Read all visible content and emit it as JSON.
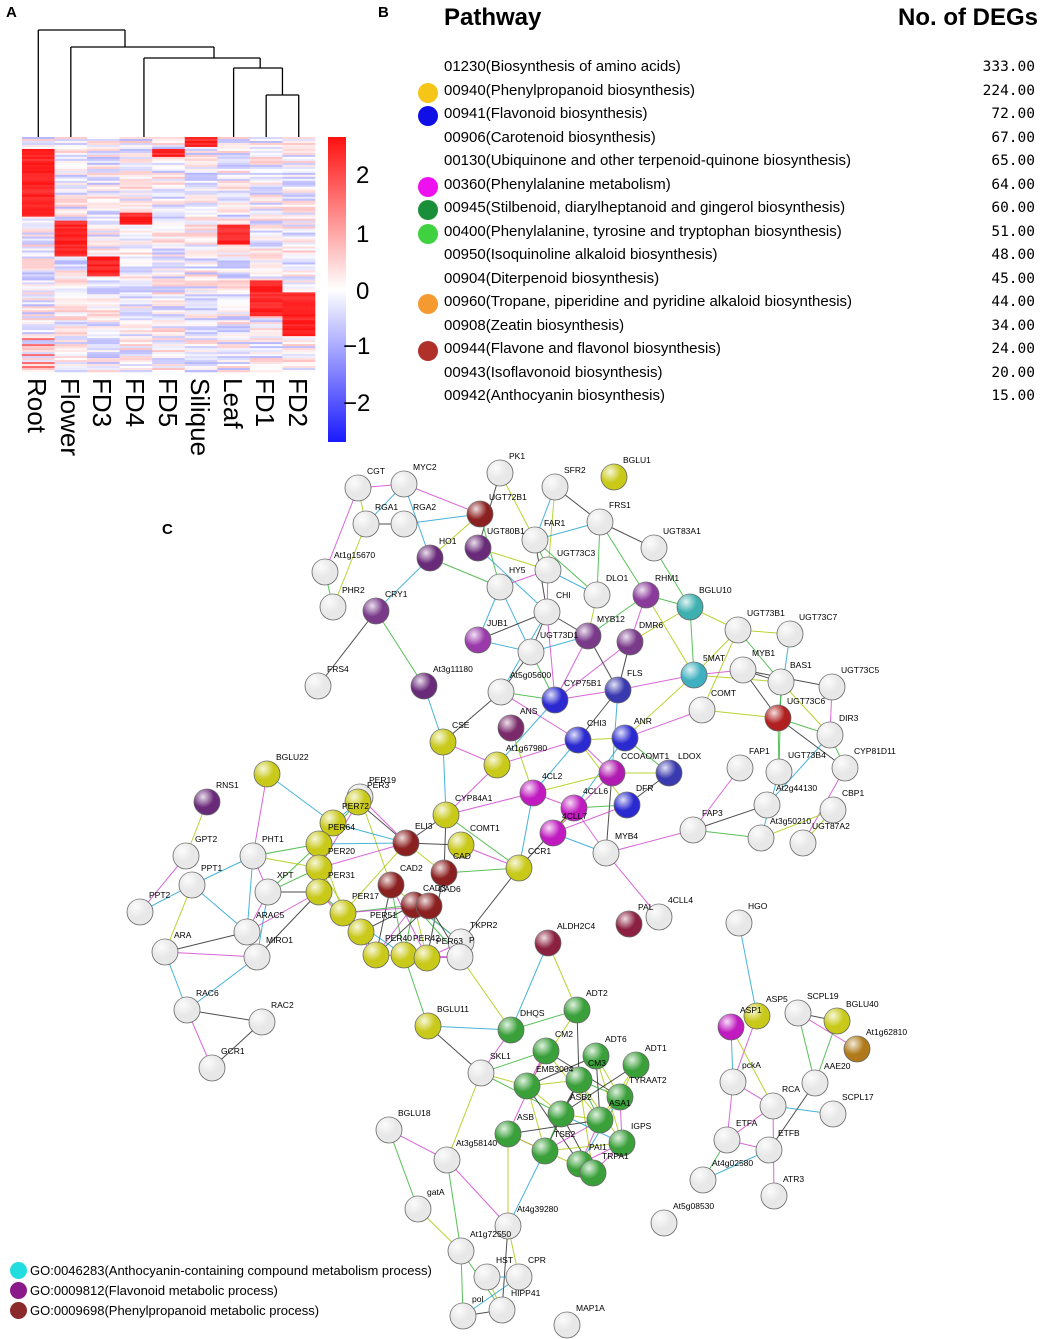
{
  "panels": {
    "a": "A",
    "b": "B",
    "c": "C"
  },
  "heatmap": {
    "samples": [
      "Root",
      "Flower",
      "FD3",
      "FD4",
      "FD5",
      "Silique",
      "Leaf",
      "FD1",
      "FD2"
    ],
    "colorbar_ticks": [
      "2",
      "1",
      "0",
      "−1",
      "−2"
    ],
    "color_low": "#1a1aff",
    "color_mid": "#ffffff",
    "color_high": "#ff1010"
  },
  "pathway_table": {
    "header_pathway": "Pathway",
    "header_count": "No. of DEGs",
    "rows": [
      {
        "label": "01230(Biosynthesis of amino acids)",
        "count": "333.00",
        "dot": ""
      },
      {
        "label": "00940(Phenylpropanoid biosynthesis)",
        "count": "224.00",
        "dot": "#f5c518"
      },
      {
        "label": "00941(Flavonoid biosynthesis)",
        "count": "72.00",
        "dot": "#1010e6"
      },
      {
        "label": "00906(Carotenoid biosynthesis)",
        "count": "67.00",
        "dot": ""
      },
      {
        "label": "00130(Ubiquinone and other terpenoid-quinone biosynthesis)",
        "count": "65.00",
        "dot": ""
      },
      {
        "label": "00360(Phenylalanine metabolism)",
        "count": "64.00",
        "dot": "#ee10ee"
      },
      {
        "label": "00945(Stilbenoid, diarylheptanoid and gingerol biosynthesis)",
        "count": "60.00",
        "dot": "#1a8f3a"
      },
      {
        "label": "00400(Phenylalanine, tyrosine and tryptophan biosynthesis)",
        "count": "51.00",
        "dot": "#3fd13f"
      },
      {
        "label": "00950(Isoquinoline alkaloid biosynthesis)",
        "count": "48.00",
        "dot": ""
      },
      {
        "label": "00904(Diterpenoid biosynthesis)",
        "count": "45.00",
        "dot": ""
      },
      {
        "label": "00960(Tropane, piperidine and pyridine alkaloid biosynthesis)",
        "count": "44.00",
        "dot": "#f59a30"
      },
      {
        "label": "00908(Zeatin biosynthesis)",
        "count": "34.00",
        "dot": ""
      },
      {
        "label": "00944(Flavone and flavonol biosynthesis)",
        "count": "24.00",
        "dot": "#b0302a"
      },
      {
        "label": "00943(Isoflavonoid biosynthesis)",
        "count": "20.00",
        "dot": ""
      },
      {
        "label": "00942(Anthocyanin biosynthesis)",
        "count": "15.00",
        "dot": ""
      }
    ]
  },
  "network": {
    "nodes": [
      {
        "id": "CGT",
        "fill": "#e8e8e8"
      },
      {
        "id": "MYC2",
        "fill": "#e8e8e8"
      },
      {
        "id": "PK1",
        "fill": "#e8e8e8"
      },
      {
        "id": "SFR2",
        "fill": "#e8e8e8"
      },
      {
        "id": "BGLU1",
        "fill": "#c9c91a"
      },
      {
        "id": "UGT72B1",
        "fill": "#8b2020"
      },
      {
        "id": "RGA1",
        "fill": "#e8e8e8"
      },
      {
        "id": "RGA2",
        "fill": "#e8e8e8"
      },
      {
        "id": "FAR1",
        "fill": "#e8e8e8"
      },
      {
        "id": "FRS1",
        "fill": "#e8e8e8"
      },
      {
        "id": "HO1",
        "fill": "#6a2a7a"
      },
      {
        "id": "UGT80B1",
        "fill": "#6a2a7a"
      },
      {
        "id": "UGT73C3",
        "fill": "#e8e8e8"
      },
      {
        "id": "At1g15670",
        "fill": "#e8e8e8"
      },
      {
        "id": "UGT83A1",
        "fill": "#e8e8e8"
      },
      {
        "id": "HY5",
        "fill": "#e8e8e8"
      },
      {
        "id": "DLO1",
        "fill": "#e8e8e8"
      },
      {
        "id": "RHM1",
        "fill": "#8a3a9a"
      },
      {
        "id": "PHR2",
        "fill": "#e8e8e8"
      },
      {
        "id": "CRY1",
        "fill": "#7a3a8a"
      },
      {
        "id": "BGLU10",
        "fill": "#3fb0b0"
      },
      {
        "id": "CHI",
        "fill": "#e8e8e8"
      },
      {
        "id": "MYB12",
        "fill": "#7a3a8a"
      },
      {
        "id": "DMR6",
        "fill": "#7a3a8a"
      },
      {
        "id": "UGT73B1",
        "fill": "#e8e8e8"
      },
      {
        "id": "UGT73C7",
        "fill": "#e8e8e8"
      },
      {
        "id": "JUB1",
        "fill": "#9a3aaa"
      },
      {
        "id": "MYB1",
        "fill": "#e8e8e8"
      },
      {
        "id": "UGT73D1",
        "fill": "#e8e8e8"
      },
      {
        "id": "5MAT",
        "fill": "#3fb0c0"
      },
      {
        "id": "BAS1",
        "fill": "#e8e8e8"
      },
      {
        "id": "UGT73C5",
        "fill": "#e8e8e8"
      },
      {
        "id": "FRS4",
        "fill": "#e8e8e8"
      },
      {
        "id": "At3g11180",
        "fill": "#6a2a7a"
      },
      {
        "id": "At5g05600",
        "fill": "#e8e8e8"
      },
      {
        "id": "CYP75B1",
        "fill": "#2a2ad0"
      },
      {
        "id": "FLS",
        "fill": "#3a3ab0"
      },
      {
        "id": "COMT",
        "fill": "#e8e8e8"
      },
      {
        "id": "UGT73C6",
        "fill": "#b02020"
      },
      {
        "id": "DIR3",
        "fill": "#e8e8e8"
      },
      {
        "id": "ANS",
        "fill": "#7a2a6a"
      },
      {
        "id": "CHI3",
        "fill": "#2a2ad0"
      },
      {
        "id": "ANR",
        "fill": "#2a2ad0"
      },
      {
        "id": "CSE",
        "fill": "#c9c91a"
      },
      {
        "id": "At1g67980",
        "fill": "#c9c91a"
      },
      {
        "id": "CCOAOMT1",
        "fill": "#b01ab0"
      },
      {
        "id": "LDOX",
        "fill": "#3a3ab0"
      },
      {
        "id": "FAP1",
        "fill": "#e8e8e8"
      },
      {
        "id": "UGT73B4",
        "fill": "#e8e8e8"
      },
      {
        "id": "CYP81D11",
        "fill": "#e8e8e8"
      },
      {
        "id": "BGLU22",
        "fill": "#c9c91a"
      },
      {
        "id": "PER19",
        "fill": "#e8e8e8"
      },
      {
        "id": "4CL2",
        "fill": "#c01ac0"
      },
      {
        "id": "PER3",
        "fill": "#c9c91a"
      },
      {
        "id": "4CLL6",
        "fill": "#c01ac0"
      },
      {
        "id": "DFR",
        "fill": "#2a2ad0"
      },
      {
        "id": "At2g44130",
        "fill": "#e8e8e8"
      },
      {
        "id": "CBP1",
        "fill": "#e8e8e8"
      },
      {
        "id": "RNS1",
        "fill": "#6a2a7a"
      },
      {
        "id": "CYP84A1",
        "fill": "#c9c91a"
      },
      {
        "id": "4CLL7",
        "fill": "#c01ac0"
      },
      {
        "id": "PER72",
        "fill": "#c9c91a"
      },
      {
        "id": "FAP3",
        "fill": "#e8e8e8"
      },
      {
        "id": "At3g50210",
        "fill": "#e8e8e8"
      },
      {
        "id": "UGT87A2",
        "fill": "#e8e8e8"
      },
      {
        "id": "PER64",
        "fill": "#c9c91a"
      },
      {
        "id": "COMT1",
        "fill": "#c9c91a"
      },
      {
        "id": "ELI3",
        "fill": "#8b2020"
      },
      {
        "id": "MYB4",
        "fill": "#e8e8e8"
      },
      {
        "id": "GPT2",
        "fill": "#e8e8e8"
      },
      {
        "id": "PHT1",
        "fill": "#e8e8e8"
      },
      {
        "id": "PER20",
        "fill": "#c9c91a"
      },
      {
        "id": "CCR1",
        "fill": "#c9c91a"
      },
      {
        "id": "CAD",
        "fill": "#8b2020"
      },
      {
        "id": "PPT1",
        "fill": "#e8e8e8"
      },
      {
        "id": "CAD2",
        "fill": "#8b2020"
      },
      {
        "id": "XPT",
        "fill": "#e8e8e8"
      },
      {
        "id": "PER31",
        "fill": "#c9c91a"
      },
      {
        "id": "CAD3",
        "fill": "#8b2020"
      },
      {
        "id": "CAD6",
        "fill": "#8b2020"
      },
      {
        "id": "PPT2",
        "fill": "#e8e8e8"
      },
      {
        "id": "PER17",
        "fill": "#c9c91a"
      },
      {
        "id": "4CLL4",
        "fill": "#e8e8e8"
      },
      {
        "id": "ARAC5",
        "fill": "#e8e8e8"
      },
      {
        "id": "PAL",
        "fill": "#8b2040"
      },
      {
        "id": "HGO",
        "fill": "#e8e8e8"
      },
      {
        "id": "PER51",
        "fill": "#c9c91a"
      },
      {
        "id": "MIRO1",
        "fill": "#e8e8e8"
      },
      {
        "id": "ARA",
        "fill": "#e8e8e8"
      },
      {
        "id": "TKPR2",
        "fill": "#e8e8e8"
      },
      {
        "id": "ALDH2C4",
        "fill": "#8b2040"
      },
      {
        "id": "PER40",
        "fill": "#c9c91a"
      },
      {
        "id": "PER42",
        "fill": "#c9c91a"
      },
      {
        "id": "PER63",
        "fill": "#c9c91a"
      },
      {
        "id": "P",
        "fill": "#e8e8e8"
      },
      {
        "id": "RAC6",
        "fill": "#e8e8e8"
      },
      {
        "id": "RAC2",
        "fill": "#e8e8e8"
      },
      {
        "id": "ADT2",
        "fill": "#3aa03a"
      },
      {
        "id": "ASP5",
        "fill": "#c9c91a"
      },
      {
        "id": "SCPL19",
        "fill": "#e8e8e8"
      },
      {
        "id": "BGLU40",
        "fill": "#c9c91a"
      },
      {
        "id": "DHQS",
        "fill": "#3aa03a"
      },
      {
        "id": "BGLU11",
        "fill": "#c9c91a"
      },
      {
        "id": "ASP1",
        "fill": "#c01ac0"
      },
      {
        "id": "At1g62810",
        "fill": "#b07a1a"
      },
      {
        "id": "CM2",
        "fill": "#3aa03a"
      },
      {
        "id": "ADT6",
        "fill": "#3aa03a"
      },
      {
        "id": "GCR1",
        "fill": "#e8e8e8"
      },
      {
        "id": "ADT1",
        "fill": "#3aa03a"
      },
      {
        "id": "SKL1",
        "fill": "#e8e8e8"
      },
      {
        "id": "CM3",
        "fill": "#3aa03a"
      },
      {
        "id": "AAE20",
        "fill": "#e8e8e8"
      },
      {
        "id": "EMB3004",
        "fill": "#3aa03a"
      },
      {
        "id": "pckA",
        "fill": "#e8e8e8"
      },
      {
        "id": "TYRAAT2",
        "fill": "#3aa03a"
      },
      {
        "id": "RCA",
        "fill": "#e8e8e8"
      },
      {
        "id": "SCPL17",
        "fill": "#e8e8e8"
      },
      {
        "id": "ASB2",
        "fill": "#3aa03a"
      },
      {
        "id": "ASA1",
        "fill": "#3aa03a"
      },
      {
        "id": "BGLU18",
        "fill": "#e8e8e8"
      },
      {
        "id": "ASB",
        "fill": "#3aa03a"
      },
      {
        "id": "IGPS",
        "fill": "#3aa03a"
      },
      {
        "id": "ETFA",
        "fill": "#e8e8e8"
      },
      {
        "id": "ETFB",
        "fill": "#e8e8e8"
      },
      {
        "id": "TSB2",
        "fill": "#3aa03a"
      },
      {
        "id": "PAI1",
        "fill": "#3aa03a"
      },
      {
        "id": "At3g58140",
        "fill": "#e8e8e8"
      },
      {
        "id": "TRPA1",
        "fill": "#3aa03a"
      },
      {
        "id": "At4g02580",
        "fill": "#e8e8e8"
      },
      {
        "id": "ATR3",
        "fill": "#e8e8e8"
      },
      {
        "id": "gatA",
        "fill": "#e8e8e8"
      },
      {
        "id": "At5g08530",
        "fill": "#e8e8e8"
      },
      {
        "id": "At4g39280",
        "fill": "#e8e8e8"
      },
      {
        "id": "At1g72550",
        "fill": "#e8e8e8"
      },
      {
        "id": "HST",
        "fill": "#e8e8e8"
      },
      {
        "id": "CPR",
        "fill": "#e8e8e8"
      },
      {
        "id": "MAP1A",
        "fill": "#e8e8e8"
      },
      {
        "id": "pol",
        "fill": "#e8e8e8"
      },
      {
        "id": "HIPP41",
        "fill": "#e8e8e8"
      }
    ]
  },
  "go_legend": [
    {
      "label": "GO:0046283(Anthocyanin-containing compound metabolism process)",
      "color": "#22dde0"
    },
    {
      "label": "GO:0009812(Flavonoid metabolic process)",
      "color": "#8a1a8a"
    },
    {
      "label": "GO:0009698(Phenylpropanoid metabolic process)",
      "color": "#8b2a2a"
    }
  ]
}
